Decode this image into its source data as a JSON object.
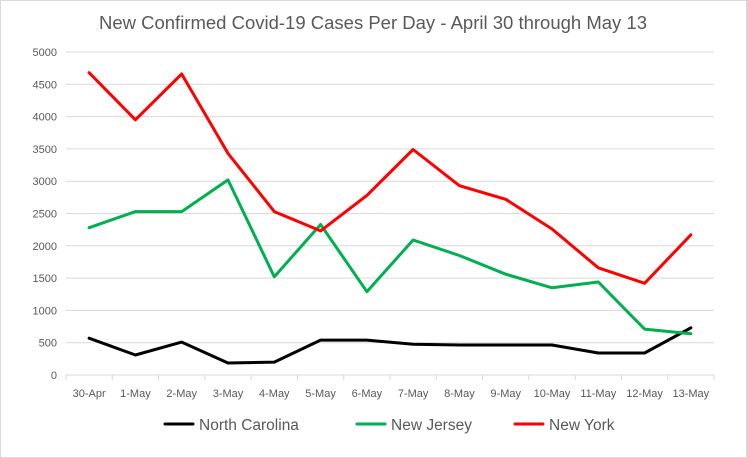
{
  "chart_data": {
    "type": "line",
    "title": "New Confirmed  Covid-19 Cases Per Day - April 30 through May 13",
    "xlabel": "",
    "ylabel": "",
    "categories": [
      "30-Apr",
      "1-May",
      "2-May",
      "3-May",
      "4-May",
      "5-May",
      "6-May",
      "7-May",
      "8-May",
      "9-May",
      "10-May",
      "11-May",
      "12-May",
      "13-May"
    ],
    "ylim": [
      0,
      5000
    ],
    "yticks": [
      "0",
      "500",
      "1000",
      "1500",
      "2000",
      "2500",
      "3000",
      "3500",
      "4000",
      "4500",
      "5000"
    ],
    "grid": true,
    "legend_position": "bottom",
    "series": [
      {
        "name": "North Carolina",
        "color": "#000000",
        "values": [
          570,
          310,
          510,
          185,
          200,
          540,
          540,
          475,
          465,
          465,
          465,
          340,
          340,
          730
        ]
      },
      {
        "name": "New Jersey",
        "color": "#00b050",
        "values": [
          2280,
          2530,
          2530,
          3020,
          1520,
          2330,
          1290,
          2090,
          1850,
          1560,
          1350,
          1440,
          710,
          640
        ]
      },
      {
        "name": "New York",
        "color": "#ff0000",
        "values": [
          4680,
          3950,
          4660,
          3430,
          2530,
          2230,
          2780,
          3490,
          2930,
          2720,
          2260,
          1660,
          1420,
          2170
        ]
      }
    ]
  }
}
